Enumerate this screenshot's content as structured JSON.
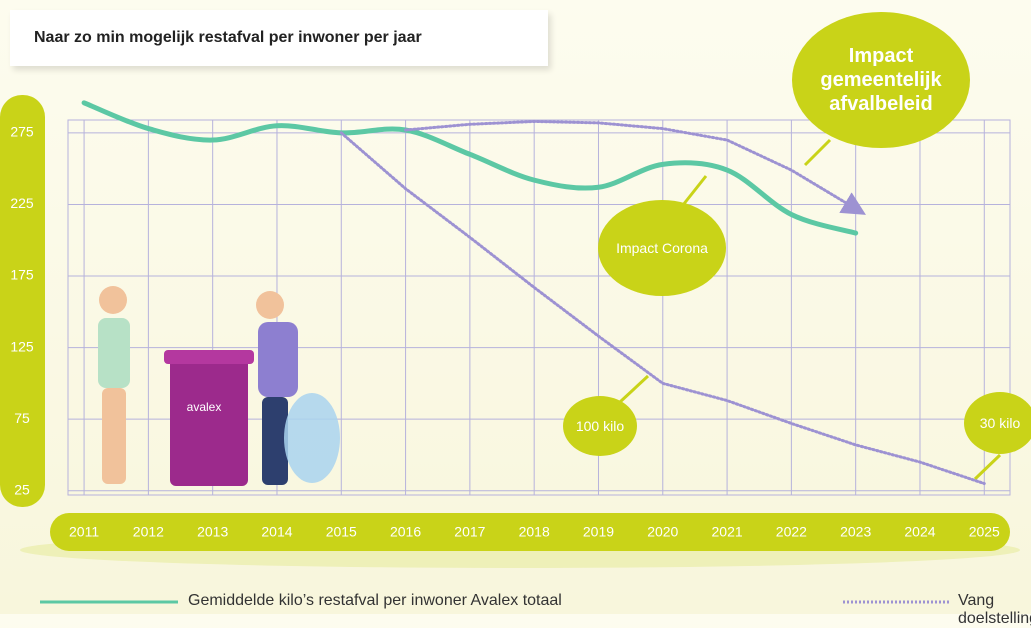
{
  "chart_data": {
    "type": "line",
    "title": "Naar zo min mogelijk restafval per inwoner per jaar",
    "x": [
      2011,
      2012,
      2013,
      2014,
      2015,
      2016,
      2017,
      2018,
      2019,
      2020,
      2021,
      2022,
      2023,
      2024,
      2025
    ],
    "series": [
      {
        "name": "Gemiddelde kilo’s restafval per inwoner Avalex totaal",
        "color": "#5cc8a4",
        "style": "solid",
        "values": [
          296,
          278,
          270,
          280,
          275,
          277,
          260,
          242,
          237,
          253,
          249,
          218,
          205,
          null,
          null
        ]
      },
      {
        "name": "Vang doelstelling",
        "color": "#9d92d2",
        "style": "dotted",
        "values": [
          null,
          null,
          null,
          null,
          275,
          236,
          202,
          167,
          133,
          100,
          88,
          72,
          57,
          45,
          30
        ]
      },
      {
        "color": "#9d92d2",
        "style": "dotted",
        "values": [
          null,
          null,
          null,
          null,
          null,
          277,
          281,
          283,
          282,
          278,
          270,
          249,
          222,
          null,
          null
        ]
      }
    ],
    "xlim": [
      2010.75,
      2025.4
    ],
    "xticks": [
      2011,
      2012,
      2013,
      2014,
      2015,
      2016,
      2017,
      2018,
      2019,
      2020,
      2021,
      2022,
      2023,
      2024,
      2025
    ],
    "ylim": [
      22,
      284
    ],
    "yticks": [
      25,
      75,
      125,
      175,
      225,
      275
    ],
    "grid": true,
    "annotations": [
      "Impact gemeentelijk afvalbeleid",
      "Impact Corona",
      "100 kilo",
      "30 kilo",
      "avalex"
    ]
  }
}
